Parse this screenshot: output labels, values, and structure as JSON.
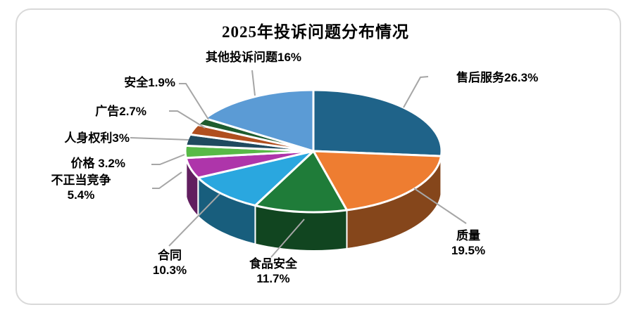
{
  "chart_data": {
    "type": "pie",
    "style": "3d-pie",
    "title": "2025年投诉问题分布情况",
    "unit": "%",
    "legend_position": "none",
    "label_style": "callout-with-leader-lines",
    "start_angle_deg": 0,
    "direction": "clockwise",
    "series": [
      {
        "name": "售后服务",
        "value": 26.3,
        "label": "售后服务26.3%",
        "color": "#1F6389"
      },
      {
        "name": "质量",
        "value": 19.5,
        "label": "质量\n19.5%",
        "color": "#EE7D31"
      },
      {
        "name": "食品安全",
        "value": 11.7,
        "label": "食品安全\n11.7%",
        "color": "#1F7C39"
      },
      {
        "name": "合同",
        "value": 10.3,
        "label": "合同\n10.3%",
        "color": "#2AA7DF"
      },
      {
        "name": "不正当竞争",
        "value": 5.4,
        "label": "不正当竞争\n5.4%",
        "color": "#AE35AA"
      },
      {
        "name": "价格",
        "value": 3.2,
        "label": "价格 3.2%",
        "color": "#58B947"
      },
      {
        "name": "人身权利",
        "value": 3.0,
        "label": "人身权利3%",
        "color": "#1F4A5F"
      },
      {
        "name": "广告",
        "value": 2.7,
        "label": "广告2.7%",
        "color": "#B04F1F"
      },
      {
        "name": "安全",
        "value": 1.9,
        "label": "安全1.9%",
        "color": "#1E5C2E"
      },
      {
        "name": "其他投诉问题",
        "value": 16.0,
        "label": "其他投诉问题16%",
        "color": "#5B9BD5"
      }
    ],
    "colors": {
      "leader_line": "#A6A6A6",
      "slice_separator": "#FFFFFF",
      "frame_border": "#D9D9D9",
      "title_text": "#000000",
      "label_text": "#000000"
    }
  }
}
